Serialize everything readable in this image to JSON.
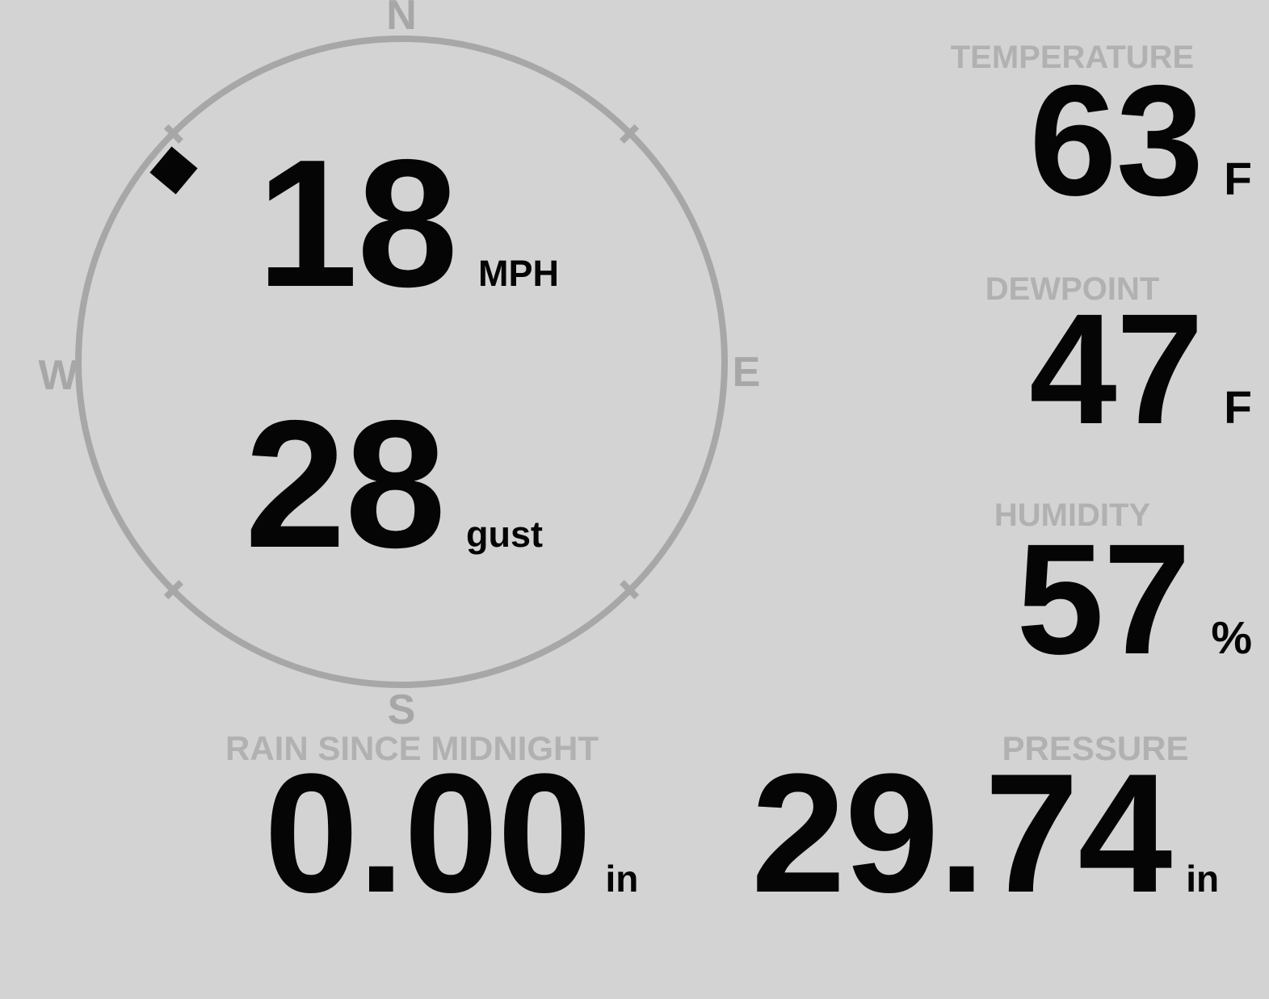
{
  "colors": {
    "background": "#d3d3d3",
    "label_gray": "#b1b1b1",
    "compass_gray": "#a7a7a7",
    "value_black": "#050505"
  },
  "compass": {
    "cardinal_labels": {
      "north": "N",
      "east": "E",
      "south": "S",
      "west": "W"
    },
    "wind_speed": {
      "value": "18",
      "unit": "MPH"
    },
    "wind_gust": {
      "value": "28",
      "unit": "gust"
    },
    "wind_direction_deg": 310
  },
  "metrics": {
    "temperature": {
      "label": "TEMPERATURE",
      "value": "63",
      "unit": "F"
    },
    "dewpoint": {
      "label": "DEWPOINT",
      "value": "47",
      "unit": "F"
    },
    "humidity": {
      "label": "HUMIDITY",
      "value": "57",
      "unit": "%"
    },
    "rain": {
      "label": "RAIN SINCE MIDNIGHT",
      "value": "0.00",
      "unit": "in"
    },
    "pressure": {
      "label": "PRESSURE",
      "value": "29.74",
      "unit": "in"
    }
  }
}
